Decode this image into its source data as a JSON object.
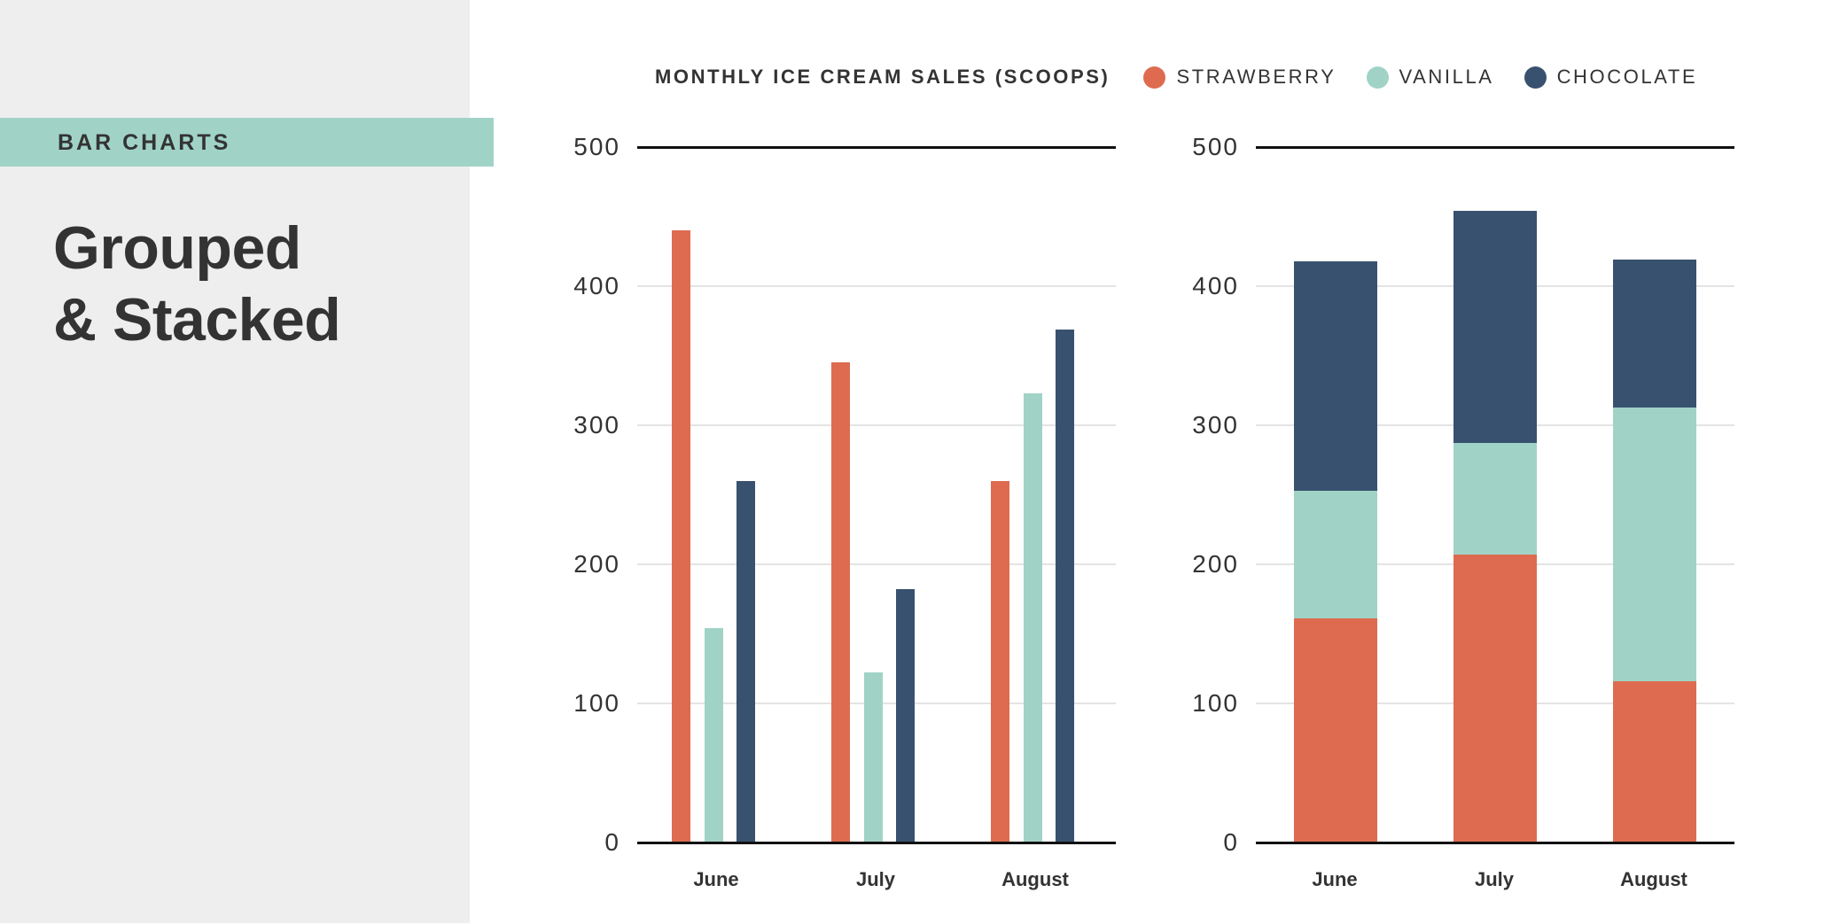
{
  "sidebar": {
    "category": "BAR CHARTS",
    "title_line1": "Grouped",
    "title_line2": "& Stacked"
  },
  "legend": {
    "title": "MONTHLY ICE CREAM SALES (SCOOPS)",
    "items": [
      {
        "label": "STRAWBERRY",
        "color": "#de6b4f"
      },
      {
        "label": "VANILLA",
        "color": "#a0d3c6"
      },
      {
        "label": "CHOCOLATE",
        "color": "#38516f"
      }
    ]
  },
  "colors": {
    "strawberry": "#de6b4f",
    "vanilla": "#a0d3c6",
    "chocolate": "#38516f",
    "panel_bg": "#eeeeee",
    "text": "#333333"
  },
  "chart_data": [
    {
      "type": "bar",
      "mode": "grouped",
      "title": "Monthly Ice Cream Sales (Scoops)",
      "xlabel": "",
      "ylabel": "",
      "categories": [
        "June",
        "July",
        "August"
      ],
      "series": [
        {
          "name": "Strawberry",
          "color": "#de6b4f",
          "values": [
            440,
            345,
            260
          ]
        },
        {
          "name": "Vanilla",
          "color": "#a0d3c6",
          "values": [
            154,
            122,
            323
          ]
        },
        {
          "name": "Chocolate",
          "color": "#38516f",
          "values": [
            260,
            182,
            369
          ]
        }
      ],
      "ylim": [
        0,
        500
      ],
      "yticks": [
        0,
        100,
        200,
        300,
        400,
        500
      ],
      "grid": true,
      "legend_position": "top"
    },
    {
      "type": "bar",
      "mode": "stacked",
      "title": "Monthly Ice Cream Sales (Scoops)",
      "xlabel": "",
      "ylabel": "",
      "categories": [
        "June",
        "July",
        "August"
      ],
      "series": [
        {
          "name": "Strawberry",
          "color": "#de6b4f",
          "values": [
            161,
            207,
            116
          ]
        },
        {
          "name": "Vanilla",
          "color": "#a0d3c6",
          "values": [
            92,
            80,
            197
          ]
        },
        {
          "name": "Chocolate",
          "color": "#38516f",
          "values": [
            165,
            167,
            106
          ]
        }
      ],
      "totals": [
        418,
        454,
        419
      ],
      "ylim": [
        0,
        500
      ],
      "yticks": [
        0,
        100,
        200,
        300,
        400,
        500
      ],
      "grid": true,
      "legend_position": "top"
    }
  ]
}
